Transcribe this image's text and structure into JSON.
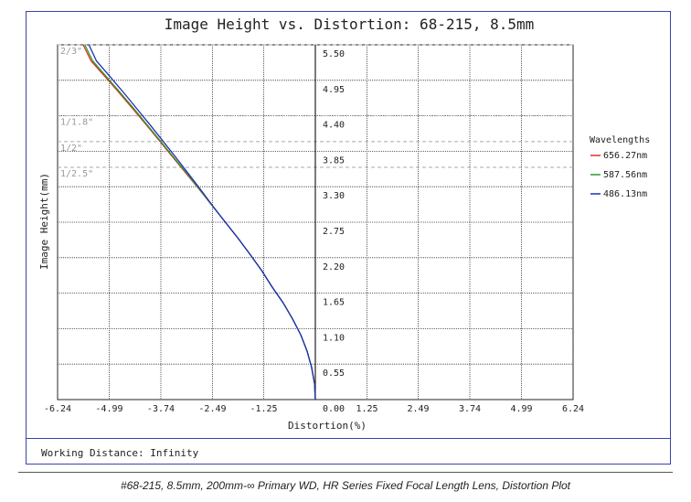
{
  "footer": {
    "working_distance": "Working Distance: Infinity",
    "caption": "#68-215, 8.5mm, 200mm-∞ Primary WD, HR Series Fixed Focal Length Lens, Distortion Plot"
  },
  "chart_data": {
    "type": "line",
    "title": "Image Height vs. Distortion: 68-215, 8.5mm",
    "xlabel": "Distortion(%)",
    "ylabel": "Image Height(mm)",
    "xlim": [
      -6.24,
      6.24
    ],
    "ylim": [
      0,
      5.5
    ],
    "x_ticks": [
      "-6.24",
      "-4.99",
      "-3.74",
      "-2.49",
      "-1.25",
      "0.00",
      "1.25",
      "2.49",
      "3.74",
      "4.99",
      "6.24"
    ],
    "x_tick_values": [
      -6.24,
      -4.99,
      -3.74,
      -2.49,
      -1.25,
      0.0,
      1.25,
      2.49,
      3.74,
      4.99,
      6.24
    ],
    "y_ticks": [
      "0.55",
      "1.10",
      "1.65",
      "2.20",
      "2.75",
      "3.30",
      "3.85",
      "4.40",
      "4.95",
      "5.50"
    ],
    "y_tick_values": [
      0.55,
      1.1,
      1.65,
      2.2,
      2.75,
      3.3,
      3.85,
      4.4,
      4.95,
      5.5
    ],
    "grid": true,
    "legend_title": "Wavelengths",
    "legend_position": "right",
    "sensor_lines": [
      {
        "label": "2/3\"",
        "y": 5.5
      },
      {
        "label": "1/1.8\"",
        "y": 4.4
      },
      {
        "label": "1/2\"",
        "y": 4.0
      },
      {
        "label": "1/2.5\"",
        "y": 3.6
      }
    ],
    "series": [
      {
        "name": "656.27nm",
        "color": "#e0301e",
        "x": [
          0.0,
          -0.02,
          -0.09,
          -0.2,
          -0.35,
          -0.55,
          -0.78,
          -1.05,
          -1.3,
          -1.58,
          -1.87,
          -2.18,
          -2.49,
          -2.8,
          -3.12,
          -3.44,
          -3.76,
          -4.08,
          -4.41,
          -4.74,
          -5.08,
          -5.43,
          -5.62
        ],
        "y": [
          0.0,
          0.25,
          0.5,
          0.75,
          1.0,
          1.25,
          1.5,
          1.75,
          2.0,
          2.25,
          2.5,
          2.75,
          3.0,
          3.25,
          3.5,
          3.75,
          4.0,
          4.25,
          4.5,
          4.75,
          5.0,
          5.25,
          5.5
        ]
      },
      {
        "name": "587.56nm",
        "color": "#2e9a2e",
        "x": [
          0.0,
          -0.02,
          -0.09,
          -0.2,
          -0.35,
          -0.55,
          -0.78,
          -1.05,
          -1.3,
          -1.58,
          -1.87,
          -2.18,
          -2.49,
          -2.79,
          -3.1,
          -3.42,
          -3.74,
          -4.06,
          -4.38,
          -4.71,
          -5.05,
          -5.39,
          -5.58
        ],
        "y": [
          0.0,
          0.25,
          0.5,
          0.75,
          1.0,
          1.25,
          1.5,
          1.75,
          2.0,
          2.25,
          2.5,
          2.75,
          3.0,
          3.25,
          3.5,
          3.75,
          4.0,
          4.25,
          4.5,
          4.75,
          5.0,
          5.25,
          5.5
        ]
      },
      {
        "name": "486.13nm",
        "color": "#1f2fb8",
        "x": [
          0.0,
          -0.02,
          -0.09,
          -0.2,
          -0.35,
          -0.55,
          -0.78,
          -1.05,
          -1.3,
          -1.58,
          -1.87,
          -2.18,
          -2.48,
          -2.77,
          -3.07,
          -3.37,
          -3.68,
          -3.99,
          -4.31,
          -4.63,
          -4.96,
          -5.3,
          -5.48
        ],
        "y": [
          0.0,
          0.25,
          0.5,
          0.75,
          1.0,
          1.25,
          1.5,
          1.75,
          2.0,
          2.25,
          2.5,
          2.75,
          3.0,
          3.25,
          3.5,
          3.75,
          4.0,
          4.25,
          4.5,
          4.75,
          5.0,
          5.25,
          5.5
        ]
      }
    ]
  }
}
